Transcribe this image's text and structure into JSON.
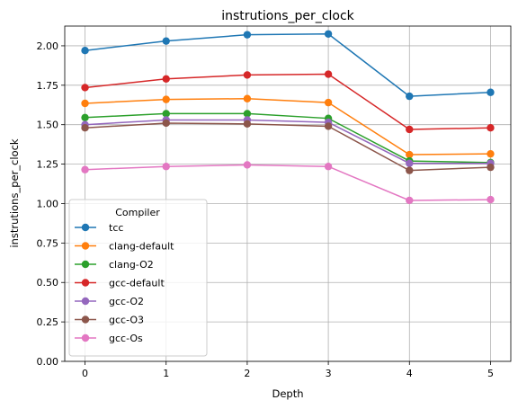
{
  "chart_data": {
    "type": "line",
    "title": "instrutions_per_clock",
    "xlabel": "Depth",
    "ylabel": "instrutions_per_clock",
    "x": [
      0,
      1,
      2,
      3,
      4,
      5
    ],
    "xticks": [
      "0",
      "1",
      "2",
      "3",
      "4",
      "5"
    ],
    "xlim": [
      -0.25,
      5.25
    ],
    "ylim": [
      0,
      2.125
    ],
    "yticks": [
      "0.00",
      "0.25",
      "0.50",
      "0.75",
      "1.00",
      "1.25",
      "1.50",
      "1.75",
      "2.00"
    ],
    "grid": true,
    "legend_title": "Compiler",
    "legend_position": "lower-left",
    "series": [
      {
        "name": "tcc",
        "color": "#1f77b4",
        "values": [
          1.97,
          2.03,
          2.07,
          2.075,
          1.68,
          1.705
        ]
      },
      {
        "name": "clang-default",
        "color": "#ff7f0e",
        "values": [
          1.635,
          1.66,
          1.665,
          1.64,
          1.31,
          1.315
        ]
      },
      {
        "name": "clang-O2",
        "color": "#2ca02c",
        "values": [
          1.545,
          1.57,
          1.57,
          1.54,
          1.27,
          1.26
        ]
      },
      {
        "name": "gcc-default",
        "color": "#d62728",
        "values": [
          1.735,
          1.79,
          1.815,
          1.82,
          1.47,
          1.48
        ]
      },
      {
        "name": "gcc-O2",
        "color": "#9467bd",
        "values": [
          1.5,
          1.53,
          1.53,
          1.515,
          1.255,
          1.255
        ]
      },
      {
        "name": "gcc-O3",
        "color": "#8c564b",
        "values": [
          1.48,
          1.51,
          1.505,
          1.49,
          1.21,
          1.23
        ]
      },
      {
        "name": "gcc-Os",
        "color": "#e377c2",
        "values": [
          1.215,
          1.235,
          1.245,
          1.235,
          1.02,
          1.025
        ]
      }
    ]
  }
}
